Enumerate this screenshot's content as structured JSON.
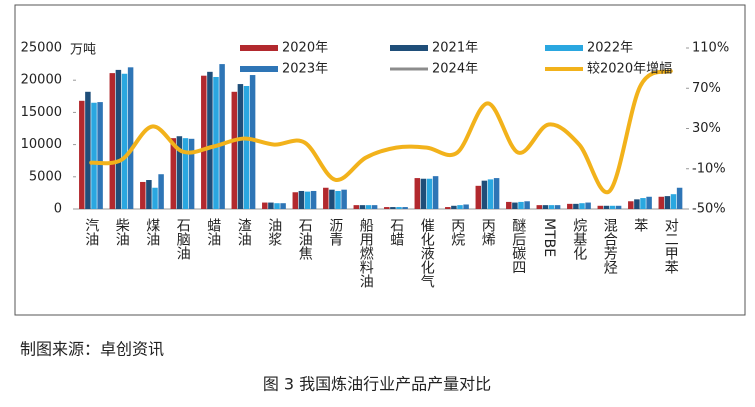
{
  "chart_data": {
    "type": "bar",
    "y_unit": "万吨",
    "source": "制图来源：卓创资讯",
    "caption": "图 3  我国炼油行业产品产量对比",
    "categories": [
      "汽油",
      "柴油",
      "煤油",
      "石脑油",
      "蜡油",
      "渣油",
      "油浆",
      "石油焦",
      "沥青",
      "船用燃料油",
      "石蜡",
      "催化液化气",
      "丙烷",
      "丙烯",
      "醚后碳四",
      "MTBE",
      "烷基化",
      "混合芳烃",
      "苯",
      "对二甲苯"
    ],
    "series": [
      {
        "name": "2020年",
        "color": "#b2292e",
        "values": [
          16800,
          21100,
          4200,
          11000,
          20700,
          18200,
          1000,
          2600,
          3300,
          600,
          300,
          4800,
          300,
          3600,
          1100,
          600,
          800,
          500,
          1200,
          1900
        ]
      },
      {
        "name": "2021年",
        "color": "#1f4e79",
        "values": [
          18200,
          21600,
          4500,
          11300,
          21300,
          19400,
          1000,
          2800,
          3000,
          600,
          300,
          4700,
          500,
          4400,
          1000,
          600,
          800,
          500,
          1500,
          2000
        ]
      },
      {
        "name": "2022年",
        "color": "#2aa7e0",
        "values": [
          16500,
          21000,
          3300,
          11000,
          20500,
          19100,
          900,
          2700,
          2800,
          600,
          300,
          4700,
          600,
          4600,
          1100,
          600,
          900,
          500,
          1700,
          2300
        ]
      },
      {
        "name": "2023年",
        "color": "#2e75b6",
        "values": [
          16600,
          22000,
          5400,
          10900,
          22500,
          20800,
          900,
          2800,
          3000,
          600,
          300,
          5100,
          700,
          4800,
          1200,
          600,
          1000,
          500,
          1900,
          3300
        ]
      },
      {
        "name": "2024年",
        "color": "#8c8c8c",
        "type": "line",
        "values": [
          null,
          null,
          null,
          null,
          null,
          null,
          null,
          null,
          null,
          null,
          null,
          null,
          null,
          null,
          null,
          null,
          null,
          null,
          null,
          null
        ]
      },
      {
        "name": "较2020年增幅",
        "color": "#f2b21b",
        "type": "line",
        "axis": "y2",
        "values": [
          -4,
          -1,
          32,
          7,
          12,
          20,
          14,
          16,
          -21,
          1,
          11,
          11,
          6,
          55,
          6,
          34,
          14,
          -32,
          72,
          87
        ]
      }
    ],
    "ylim": [
      0,
      25000
    ],
    "yticks": [
      0,
      5000,
      10000,
      15000,
      20000,
      25000
    ],
    "y2lim": [
      -50,
      110
    ],
    "y2ticks": [
      {
        "value": -50,
        "label": "-50%"
      },
      {
        "value": -10,
        "label": "-10%"
      },
      {
        "value": 30,
        "label": "30%"
      },
      {
        "value": 70,
        "label": "70%"
      },
      {
        "value": 110,
        "label": "110%"
      }
    ]
  }
}
